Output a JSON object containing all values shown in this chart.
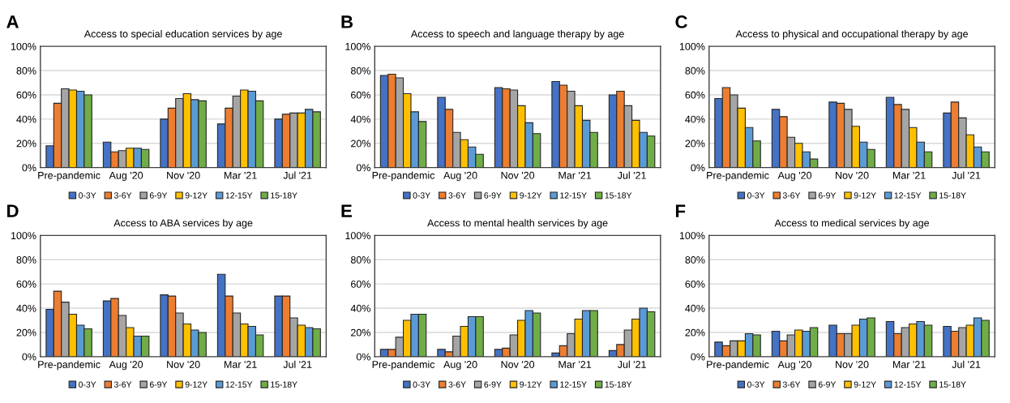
{
  "chart_data": [
    {
      "type": "bar",
      "title": "Access to special education services by age",
      "annotations": [
        "A"
      ],
      "categories": [
        "Pre-pandemic",
        "Aug '20",
        "Nov '20",
        "Mar '21",
        "Jul '21"
      ],
      "series": [
        {
          "name": "0-3Y",
          "color": "#4472c4",
          "values": [
            18,
            21,
            40,
            36,
            40
          ]
        },
        {
          "name": "3-6Y",
          "color": "#ed7d31",
          "values": [
            53,
            13,
            49,
            49,
            44
          ]
        },
        {
          "name": "6-9Y",
          "color": "#a5a5a5",
          "values": [
            65,
            14,
            57,
            59,
            45
          ]
        },
        {
          "name": "9-12Y",
          "color": "#ffc000",
          "values": [
            64,
            16,
            61,
            64,
            45
          ]
        },
        {
          "name": "12-15Y",
          "color": "#5b9bd5",
          "values": [
            63,
            16,
            56,
            63,
            48
          ]
        },
        {
          "name": "15-18Y",
          "color": "#70ad47",
          "values": [
            60,
            15,
            55,
            55,
            46
          ]
        }
      ],
      "ylim": [
        0,
        100
      ],
      "yticks": [
        {
          "value": 0,
          "label": "0%"
        },
        {
          "value": 20,
          "label": "20%"
        },
        {
          "value": 40,
          "label": "40%"
        },
        {
          "value": 60,
          "label": "60%"
        },
        {
          "value": 80,
          "label": "80%"
        },
        {
          "value": 100,
          "label": "100%"
        }
      ],
      "grid": "y",
      "legend": "bottom"
    },
    {
      "type": "bar",
      "title": "Access to speech and language therapy by age",
      "annotations": [
        "B"
      ],
      "categories": [
        "Pre-pandemic",
        "Aug '20",
        "Nov '20",
        "Mar '21",
        "Jul '21"
      ],
      "series": [
        {
          "name": "0-3Y",
          "color": "#4472c4",
          "values": [
            76,
            58,
            66,
            71,
            60
          ]
        },
        {
          "name": "3-6Y",
          "color": "#ed7d31",
          "values": [
            77,
            48,
            65,
            68,
            63
          ]
        },
        {
          "name": "6-9Y",
          "color": "#a5a5a5",
          "values": [
            74,
            29,
            64,
            63,
            51
          ]
        },
        {
          "name": "9-12Y",
          "color": "#ffc000",
          "values": [
            61,
            23,
            51,
            51,
            39
          ]
        },
        {
          "name": "12-15Y",
          "color": "#5b9bd5",
          "values": [
            46,
            17,
            37,
            39,
            29
          ]
        },
        {
          "name": "15-18Y",
          "color": "#70ad47",
          "values": [
            38,
            11,
            28,
            29,
            26
          ]
        }
      ],
      "ylim": [
        0,
        100
      ],
      "yticks": [
        {
          "value": 0,
          "label": "0%"
        },
        {
          "value": 20,
          "label": "20%"
        },
        {
          "value": 40,
          "label": "40%"
        },
        {
          "value": 60,
          "label": "60%"
        },
        {
          "value": 80,
          "label": "80%"
        },
        {
          "value": 100,
          "label": "100%"
        }
      ],
      "grid": "y",
      "legend": "bottom"
    },
    {
      "type": "bar",
      "title": "Access to physical and occupational therapy by age",
      "annotations": [
        "C"
      ],
      "categories": [
        "Pre-pandemic",
        "Aug '20",
        "Nov '20",
        "Mar '21",
        "Jul '21"
      ],
      "series": [
        {
          "name": "0-3Y",
          "color": "#4472c4",
          "values": [
            57,
            48,
            54,
            58,
            45
          ]
        },
        {
          "name": "3-6Y",
          "color": "#ed7d31",
          "values": [
            66,
            42,
            53,
            52,
            54
          ]
        },
        {
          "name": "6-9Y",
          "color": "#a5a5a5",
          "values": [
            60,
            25,
            48,
            48,
            41
          ]
        },
        {
          "name": "9-12Y",
          "color": "#ffc000",
          "values": [
            49,
            20,
            34,
            33,
            27
          ]
        },
        {
          "name": "12-15Y",
          "color": "#5b9bd5",
          "values": [
            33,
            13,
            21,
            21,
            17
          ]
        },
        {
          "name": "15-18Y",
          "color": "#70ad47",
          "values": [
            22,
            7,
            15,
            13,
            13
          ]
        }
      ],
      "ylim": [
        0,
        100
      ],
      "yticks": [
        {
          "value": 0,
          "label": "0%"
        },
        {
          "value": 20,
          "label": "20%"
        },
        {
          "value": 40,
          "label": "40%"
        },
        {
          "value": 60,
          "label": "60%"
        },
        {
          "value": 80,
          "label": "80%"
        },
        {
          "value": 100,
          "label": "100%"
        }
      ],
      "grid": "y",
      "legend": "bottom"
    },
    {
      "type": "bar",
      "title": "Access to ABA services by age",
      "annotations": [
        "D"
      ],
      "categories": [
        "Pre-pandemic",
        "Aug '20",
        "Nov '20",
        "Mar '21",
        "Jul '21"
      ],
      "series": [
        {
          "name": "0-3Y",
          "color": "#4472c4",
          "values": [
            39,
            46,
            51,
            68,
            50
          ]
        },
        {
          "name": "3-6Y",
          "color": "#ed7d31",
          "values": [
            54,
            48,
            50,
            50,
            50
          ]
        },
        {
          "name": "6-9Y",
          "color": "#a5a5a5",
          "values": [
            45,
            34,
            36,
            36,
            32
          ]
        },
        {
          "name": "9-12Y",
          "color": "#ffc000",
          "values": [
            35,
            24,
            27,
            27,
            26
          ]
        },
        {
          "name": "12-15Y",
          "color": "#5b9bd5",
          "values": [
            26,
            17,
            22,
            25,
            24
          ]
        },
        {
          "name": "15-18Y",
          "color": "#70ad47",
          "values": [
            23,
            17,
            20,
            18,
            23
          ]
        }
      ],
      "ylim": [
        0,
        100
      ],
      "yticks": [
        {
          "value": 0,
          "label": "0%"
        },
        {
          "value": 20,
          "label": "20%"
        },
        {
          "value": 40,
          "label": "40%"
        },
        {
          "value": 60,
          "label": "60%"
        },
        {
          "value": 80,
          "label": "80%"
        },
        {
          "value": 100,
          "label": "100%"
        }
      ],
      "grid": "y",
      "legend": "bottom"
    },
    {
      "type": "bar",
      "title": "Access to mental health services by age",
      "annotations": [
        "E"
      ],
      "categories": [
        "Pre-pandemic",
        "Aug '20",
        "Nov '20",
        "Mar '21",
        "Jul '21"
      ],
      "series": [
        {
          "name": "0-3Y",
          "color": "#4472c4",
          "values": [
            6,
            6,
            6,
            3,
            5
          ]
        },
        {
          "name": "3-6Y",
          "color": "#ed7d31",
          "values": [
            6,
            4,
            7,
            9,
            10
          ]
        },
        {
          "name": "6-9Y",
          "color": "#a5a5a5",
          "values": [
            16,
            17,
            18,
            19,
            22
          ]
        },
        {
          "name": "9-12Y",
          "color": "#ffc000",
          "values": [
            30,
            25,
            30,
            31,
            31
          ]
        },
        {
          "name": "12-15Y",
          "color": "#5b9bd5",
          "values": [
            35,
            33,
            38,
            38,
            40
          ]
        },
        {
          "name": "15-18Y",
          "color": "#70ad47",
          "values": [
            35,
            33,
            36,
            38,
            37
          ]
        }
      ],
      "ylim": [
        0,
        100
      ],
      "yticks": [
        {
          "value": 0,
          "label": "0%"
        },
        {
          "value": 20,
          "label": "20%"
        },
        {
          "value": 40,
          "label": "40%"
        },
        {
          "value": 60,
          "label": "60%"
        },
        {
          "value": 80,
          "label": "80%"
        },
        {
          "value": 100,
          "label": "100%"
        }
      ],
      "grid": "y",
      "legend": "bottom"
    },
    {
      "type": "bar",
      "title": "Access to medical services by age",
      "annotations": [
        "F"
      ],
      "categories": [
        "Pre-pandemic",
        "Aug '20",
        "Nov '20",
        "Mar '21",
        "Jul '21"
      ],
      "series": [
        {
          "name": "0-3Y",
          "color": "#4472c4",
          "values": [
            12,
            21,
            26,
            29,
            25
          ]
        },
        {
          "name": "3-6Y",
          "color": "#ed7d31",
          "values": [
            9,
            13,
            19,
            19,
            21
          ]
        },
        {
          "name": "6-9Y",
          "color": "#a5a5a5",
          "values": [
            13,
            18,
            19,
            24,
            24
          ]
        },
        {
          "name": "9-12Y",
          "color": "#ffc000",
          "values": [
            13,
            22,
            26,
            27,
            26
          ]
        },
        {
          "name": "12-15Y",
          "color": "#5b9bd5",
          "values": [
            19,
            21,
            31,
            29,
            32
          ]
        },
        {
          "name": "15-18Y",
          "color": "#70ad47",
          "values": [
            18,
            24,
            32,
            26,
            30
          ]
        }
      ],
      "ylim": [
        0,
        100
      ],
      "yticks": [
        {
          "value": 0,
          "label": "0%"
        },
        {
          "value": 20,
          "label": "20%"
        },
        {
          "value": 40,
          "label": "40%"
        },
        {
          "value": 60,
          "label": "60%"
        },
        {
          "value": 80,
          "label": "80%"
        },
        {
          "value": 100,
          "label": "100%"
        }
      ],
      "grid": "y",
      "legend": "bottom"
    }
  ]
}
